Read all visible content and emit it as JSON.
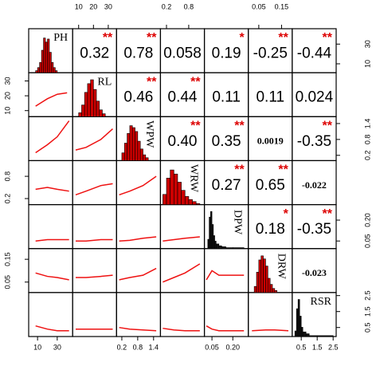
{
  "chart_data": {
    "type": "pairs",
    "variables": [
      {
        "name": "PH",
        "lim": [
          2.6,
          44
        ],
        "ticks": [
          10,
          30
        ],
        "label_rotated": false,
        "hist": {
          "color": "#cc0000",
          "bins": [
            8,
            10,
            12,
            14,
            16,
            18,
            20,
            22,
            24,
            26,
            28,
            30
          ],
          "counts": [
            2,
            5,
            10,
            22,
            34,
            30,
            33,
            20,
            10,
            5,
            2
          ],
          "ylim": [
            0,
            40
          ]
        }
      },
      {
        "name": "RL",
        "lim": [
          7,
          34.5
        ],
        "ticks": [
          10,
          20,
          30
        ],
        "label_rotated": false,
        "hist": {
          "color": "#cc0000",
          "bins": [
            10,
            12,
            14,
            16,
            18,
            20,
            22,
            24,
            26,
            28
          ],
          "counts": [
            4,
            12,
            25,
            34,
            38,
            28,
            16,
            7,
            3
          ],
          "ylim": [
            0,
            42
          ]
        }
      },
      {
        "name": "WPW",
        "lim": [
          0.06,
          1.6
        ],
        "ticks": [
          0.2,
          0.8,
          1.4
        ],
        "label_rotated": true,
        "hist": {
          "color": "#cc0000",
          "bins": [
            0.2,
            0.3,
            0.4,
            0.5,
            0.6,
            0.7,
            0.8,
            0.9,
            1.0,
            1.1,
            1.2
          ],
          "counts": [
            8,
            18,
            28,
            36,
            34,
            30,
            20,
            12,
            6,
            3
          ],
          "ylim": [
            0,
            42
          ]
        }
      },
      {
        "name": "WRW",
        "lim": [
          0.08,
          1.18
        ],
        "ticks": [
          0.2,
          0.8
        ],
        "label_rotated": true,
        "hist": {
          "color": "#cc0000",
          "bins": [
            0.1,
            0.2,
            0.3,
            0.4,
            0.5,
            0.6,
            0.7,
            0.8,
            0.9,
            1.0,
            1.1
          ],
          "counts": [
            10,
            26,
            34,
            30,
            22,
            14,
            8,
            5,
            3,
            1
          ],
          "ylim": [
            0,
            40
          ]
        }
      },
      {
        "name": "DPW",
        "lim": [
          0.007,
          0.3
        ],
        "ticks": [
          0.05,
          {
            "value": 0.2,
            "label": "0.20"
          }
        ],
        "label_rotated": true,
        "hist": {
          "color": "#111111",
          "bins": [
            0.02,
            0.03,
            0.04,
            0.05,
            0.06,
            0.07,
            0.08,
            0.1,
            0.12,
            0.15,
            0.2,
            0.28
          ],
          "counts": [
            10,
            34,
            40,
            26,
            14,
            8,
            5,
            3,
            2,
            1,
            1
          ],
          "ylim": [
            0,
            44
          ]
        }
      },
      {
        "name": "DRW",
        "lim": [
          0.011,
          0.19
        ],
        "ticks": [
          0.05,
          0.15
        ],
        "label_rotated": true,
        "hist": {
          "color": "#cc0000",
          "bins": [
            0.03,
            0.04,
            0.05,
            0.06,
            0.07,
            0.08,
            0.09,
            0.1,
            0.11,
            0.12,
            0.13
          ],
          "counts": [
            6,
            20,
            32,
            36,
            33,
            26,
            14,
            8,
            4,
            2
          ],
          "ylim": [
            0,
            40
          ]
        }
      },
      {
        "name": "RSR",
        "lim": [
          0.035,
          2.59
        ],
        "ticks": [
          0.5,
          1.5,
          2.5
        ],
        "label_rotated": false,
        "hist": {
          "color": "#111111",
          "bins": [
            0.1,
            0.2,
            0.3,
            0.4,
            0.5,
            0.6,
            0.8,
            1.0,
            1.5,
            2.5
          ],
          "counts": [
            6,
            30,
            40,
            22,
            10,
            5,
            3,
            1,
            1
          ],
          "ylim": [
            0,
            44
          ]
        }
      }
    ],
    "correlations": [
      [
        0.32,
        0.78,
        0.058,
        0.19,
        -0.25,
        -0.44
      ],
      [
        0.46,
        0.44,
        0.11,
        0.11,
        0.024
      ],
      [
        0.4,
        0.35,
        0.0019,
        -0.35
      ],
      [
        0.27,
        0.65,
        -0.022
      ],
      [
        0.18,
        -0.35
      ],
      [
        -0.023
      ]
    ],
    "value_labels": [
      [
        "0.32",
        "0.78",
        "0.058",
        "0.19",
        "-0.25",
        "-0.44"
      ],
      [
        "0.46",
        "0.44",
        "0.11",
        "0.11",
        "0.024"
      ],
      [
        "0.40",
        "0.35",
        "0.0019",
        "-0.35"
      ],
      [
        "0.27",
        "0.65",
        "-0.022"
      ],
      [
        "0.18",
        "-0.35"
      ],
      [
        "-0.023"
      ]
    ],
    "stars": [
      [
        "**",
        "**",
        null,
        "*",
        "**",
        "**"
      ],
      [
        "**",
        "**",
        null,
        null,
        null
      ],
      [
        "**",
        "**",
        null,
        "**"
      ],
      [
        "**",
        "**",
        null
      ],
      [
        "*",
        "**"
      ],
      [
        null
      ]
    ],
    "lower": [
      [
        {
          "x": [
            8,
            20,
            30,
            40
          ],
          "y": [
            13,
            18,
            21,
            22
          ]
        }
      ],
      [
        {
          "x": [
            8,
            20,
            30,
            42
          ],
          "y": [
            0.3,
            0.6,
            0.9,
            1.5
          ]
        },
        {
          "x": [
            8,
            15,
            25,
            33
          ],
          "y": [
            0.4,
            0.5,
            0.8,
            1.2
          ]
        }
      ],
      [
        {
          "x": [
            8,
            20,
            30,
            42
          ],
          "y": [
            0.45,
            0.5,
            0.45,
            0.4
          ]
        },
        {
          "x": [
            8,
            15,
            25,
            33
          ],
          "y": [
            0.3,
            0.4,
            0.55,
            0.6
          ]
        },
        {
          "x": [
            0.1,
            0.5,
            1.0,
            1.5
          ],
          "y": [
            0.3,
            0.4,
            0.55,
            0.8
          ]
        }
      ],
      [
        {
          "x": [
            8,
            20,
            30,
            42
          ],
          "y": [
            0.05,
            0.06,
            0.06,
            0.06
          ]
        },
        {
          "x": [
            8,
            15,
            25,
            33
          ],
          "y": [
            0.05,
            0.05,
            0.06,
            0.06
          ]
        },
        {
          "x": [
            0.1,
            0.5,
            1.0,
            1.5
          ],
          "y": [
            0.05,
            0.055,
            0.07,
            0.08
          ]
        },
        {
          "x": [
            0.1,
            0.4,
            0.7,
            1.1
          ],
          "y": [
            0.05,
            0.06,
            0.07,
            0.08
          ]
        }
      ],
      [
        {
          "x": [
            8,
            20,
            30,
            42
          ],
          "y": [
            0.09,
            0.075,
            0.07,
            0.06
          ]
        },
        {
          "x": [
            8,
            15,
            25,
            33
          ],
          "y": [
            0.07,
            0.07,
            0.075,
            0.08
          ]
        },
        {
          "x": [
            0.1,
            0.5,
            1.0,
            1.5
          ],
          "y": [
            0.06,
            0.07,
            0.08,
            0.11
          ]
        },
        {
          "x": [
            0.1,
            0.4,
            0.7,
            1.1
          ],
          "y": [
            0.05,
            0.07,
            0.09,
            0.13
          ]
        },
        {
          "x": [
            0.01,
            0.05,
            0.1,
            0.28
          ],
          "y": [
            0.06,
            0.1,
            0.08,
            0.08
          ]
        }
      ],
      [
        {
          "x": [
            8,
            20,
            30,
            42
          ],
          "y": [
            0.6,
            0.4,
            0.3,
            0.3
          ]
        },
        {
          "x": [
            8,
            15,
            25,
            33
          ],
          "y": [
            0.4,
            0.4,
            0.4,
            0.4
          ]
        },
        {
          "x": [
            0.1,
            0.5,
            1.0,
            1.5
          ],
          "y": [
            0.5,
            0.4,
            0.35,
            0.3
          ]
        },
        {
          "x": [
            0.1,
            0.4,
            0.7,
            1.1
          ],
          "y": [
            0.45,
            0.35,
            0.3,
            0.3
          ]
        },
        {
          "x": [
            0.01,
            0.05,
            0.1,
            0.28
          ],
          "y": [
            0.6,
            0.4,
            0.3,
            0.3
          ]
        },
        {
          "x": [
            0.02,
            0.08,
            0.12,
            0.18
          ],
          "y": [
            0.3,
            0.35,
            0.35,
            0.3
          ]
        }
      ]
    ],
    "trend_color": "#ee1111",
    "star_color": "#dd0000"
  }
}
